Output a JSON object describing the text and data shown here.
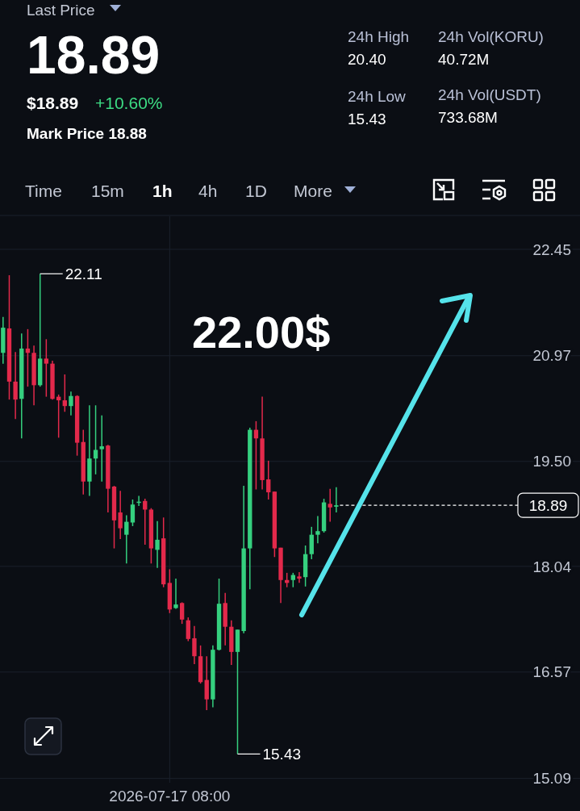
{
  "chart_data": {
    "type": "candlestick",
    "categories": [
      null,
      null,
      null,
      null,
      null,
      null,
      null,
      null,
      null,
      null,
      null,
      null,
      null,
      null,
      null,
      null,
      null,
      null,
      null,
      null,
      null,
      null,
      null,
      null,
      null,
      null,
      null,
      "2026-07-17 08:00",
      null,
      null,
      null,
      null,
      null,
      null,
      null,
      null,
      null,
      null,
      null,
      null,
      null,
      null,
      null,
      null,
      null,
      null,
      null,
      null,
      null,
      null,
      null,
      null,
      null,
      null,
      null,
      null,
      null,
      null,
      null,
      null,
      null,
      null,
      null,
      null,
      null,
      null,
      null,
      null,
      null,
      null,
      null,
      null,
      null,
      null,
      null,
      null,
      null,
      null,
      null,
      null,
      null,
      null,
      null,
      null,
      null,
      null,
      null,
      null,
      null,
      null,
      null,
      null,
      null,
      null
    ],
    "ohlc": [
      [
        21.01,
        21.51,
        20.86,
        21.36
      ],
      [
        21.35,
        22.09,
        20.36,
        20.61
      ],
      [
        20.61,
        21.02,
        20.09,
        20.36
      ],
      [
        20.37,
        21.28,
        19.82,
        21.07
      ],
      [
        21.07,
        21.34,
        20.54,
        21.01
      ],
      [
        21.01,
        21.11,
        20.28,
        20.56
      ],
      [
        20.56,
        22.11,
        20.54,
        20.93
      ],
      [
        20.93,
        21.2,
        20.4,
        20.86
      ],
      [
        20.86,
        20.9,
        20.36,
        20.37
      ],
      [
        20.4,
        20.43,
        19.83,
        20.35
      ],
      [
        20.35,
        20.71,
        20.19,
        20.27
      ],
      [
        20.27,
        20.47,
        20.14,
        20.41
      ],
      [
        20.41,
        20.42,
        19.58,
        19.76
      ],
      [
        19.77,
        19.94,
        19.04,
        19.22
      ],
      [
        19.22,
        20.28,
        19.02,
        19.54
      ],
      [
        19.54,
        20.28,
        19.32,
        19.66
      ],
      [
        19.67,
        20.14,
        19.22,
        19.71
      ],
      [
        19.72,
        19.73,
        18.79,
        19.12
      ],
      [
        19.15,
        19.16,
        18.29,
        18.68
      ],
      [
        18.79,
        19.09,
        18.42,
        18.57
      ],
      [
        18.48,
        18.75,
        18.08,
        18.66
      ],
      [
        18.65,
        18.97,
        18.6,
        18.9
      ],
      [
        18.93,
        19.02,
        18.88,
        18.94
      ],
      [
        18.95,
        18.98,
        18.34,
        18.83
      ],
      [
        18.83,
        18.85,
        18.08,
        18.29
      ],
      [
        18.27,
        18.67,
        18.02,
        18.41
      ],
      [
        18.43,
        18.72,
        17.75,
        17.79
      ],
      [
        17.81,
        18.0,
        17.39,
        17.44
      ],
      [
        17.46,
        17.87,
        17.45,
        17.51
      ],
      [
        17.53,
        17.54,
        17.24,
        17.3
      ],
      [
        17.29,
        17.33,
        17.0,
        17.03
      ],
      [
        17.04,
        17.21,
        16.68,
        16.79
      ],
      [
        16.79,
        16.94,
        16.41,
        16.43
      ],
      [
        16.46,
        16.79,
        16.04,
        16.19
      ],
      [
        16.19,
        16.94,
        16.08,
        16.88
      ],
      [
        16.88,
        17.87,
        16.87,
        17.52
      ],
      [
        17.53,
        17.67,
        16.94,
        17.2
      ],
      [
        17.2,
        17.29,
        16.67,
        16.85
      ],
      [
        16.85,
        17.16,
        15.43,
        17.16
      ],
      [
        17.14,
        19.16,
        17.11,
        18.29
      ],
      [
        18.29,
        19.97,
        17.72,
        19.94
      ],
      [
        19.94,
        20.06,
        19.11,
        19.82
      ],
      [
        19.82,
        20.4,
        19.11,
        19.24
      ],
      [
        19.25,
        19.51,
        18.97,
        19.07
      ],
      [
        19.08,
        19.08,
        18.17,
        18.29
      ],
      [
        18.3,
        18.3,
        17.53,
        17.85
      ],
      [
        17.85,
        17.95,
        17.75,
        17.81
      ],
      [
        17.85,
        17.95,
        17.75,
        17.92
      ],
      [
        17.9,
        17.96,
        17.81,
        17.87
      ],
      [
        17.89,
        18.33,
        17.76,
        18.21
      ],
      [
        18.21,
        18.59,
        18.14,
        18.48
      ],
      [
        18.48,
        18.74,
        18.36,
        18.53
      ],
      [
        18.53,
        18.98,
        18.51,
        18.93
      ],
      [
        18.91,
        19.12,
        18.66,
        18.86
      ],
      [
        18.87,
        19.14,
        18.79,
        18.89
      ],
      null,
      null,
      null,
      null,
      null,
      null,
      null,
      null,
      null,
      null,
      null,
      null,
      null,
      null,
      null,
      null,
      null,
      null,
      null,
      null,
      null,
      null,
      null,
      null,
      null,
      null,
      null,
      null,
      null,
      null,
      null,
      null,
      null,
      null,
      null,
      null,
      null,
      null,
      null
    ],
    "colors": [
      "#35d07f",
      "#e3294b",
      "#e3294b",
      "#35d07f",
      "#e3294b",
      "#e3294b",
      "#35d07f",
      "#e3294b",
      "#e3294b",
      "#e3294b",
      "#e3294b",
      "#35d07f",
      "#e3294b",
      "#e3294b",
      "#35d07f",
      "#35d07f",
      "#35d07f",
      "#e3294b",
      "#e3294b",
      "#e3294b",
      "#35d07f",
      "#35d07f",
      "#35d07f",
      "#e3294b",
      "#e3294b",
      "#35d07f",
      "#e3294b",
      "#e3294b",
      "#35d07f",
      "#e3294b",
      "#e3294b",
      "#e3294b",
      "#e3294b",
      "#e3294b",
      "#35d07f",
      "#35d07f",
      "#e3294b",
      "#e3294b",
      "#35d07f",
      "#35d07f",
      "#35d07f",
      "#e3294b",
      "#e3294b",
      "#e3294b",
      "#e3294b",
      "#e3294b",
      "#e3294b",
      "#35d07f",
      "#e3294b",
      "#35d07f",
      "#35d07f",
      "#35d07f",
      "#35d07f",
      "#e3294b",
      "#35d07f",
      null,
      null,
      null,
      null,
      null,
      null,
      null,
      null,
      null,
      null,
      null,
      null,
      null,
      null,
      null,
      null,
      null,
      null,
      null,
      null,
      null,
      null,
      null,
      null,
      null,
      null,
      null,
      null,
      null,
      null,
      null,
      null,
      null,
      null,
      null,
      null,
      null,
      null,
      null
    ],
    "ylim": [
      15.03,
      22.91
    ],
    "yticks": [
      22.45,
      20.97,
      {
        "value": 19.5,
        "label": "19.50"
      },
      18.04,
      16.57,
      15.09
    ],
    "grid": true,
    "ref_lines": [
      {
        "axis": "y",
        "value": 18.89,
        "label": "18.89",
        "color": "#ffffff",
        "line_style": "dashed"
      }
    ],
    "annotations": [
      "Last Price",
      "18.89",
      "$18.89",
      "+10.60%",
      "Mark Price 18.88",
      "24h High",
      "20.40",
      "24h Low",
      "15.43",
      "24h Vol(KORU)",
      "40.72M",
      "24h Vol(USDT)",
      "733.68M",
      "Time",
      "15m",
      "1h",
      "4h",
      "1D",
      "More",
      "22.00$",
      "22.11",
      "15.43"
    ]
  }
}
